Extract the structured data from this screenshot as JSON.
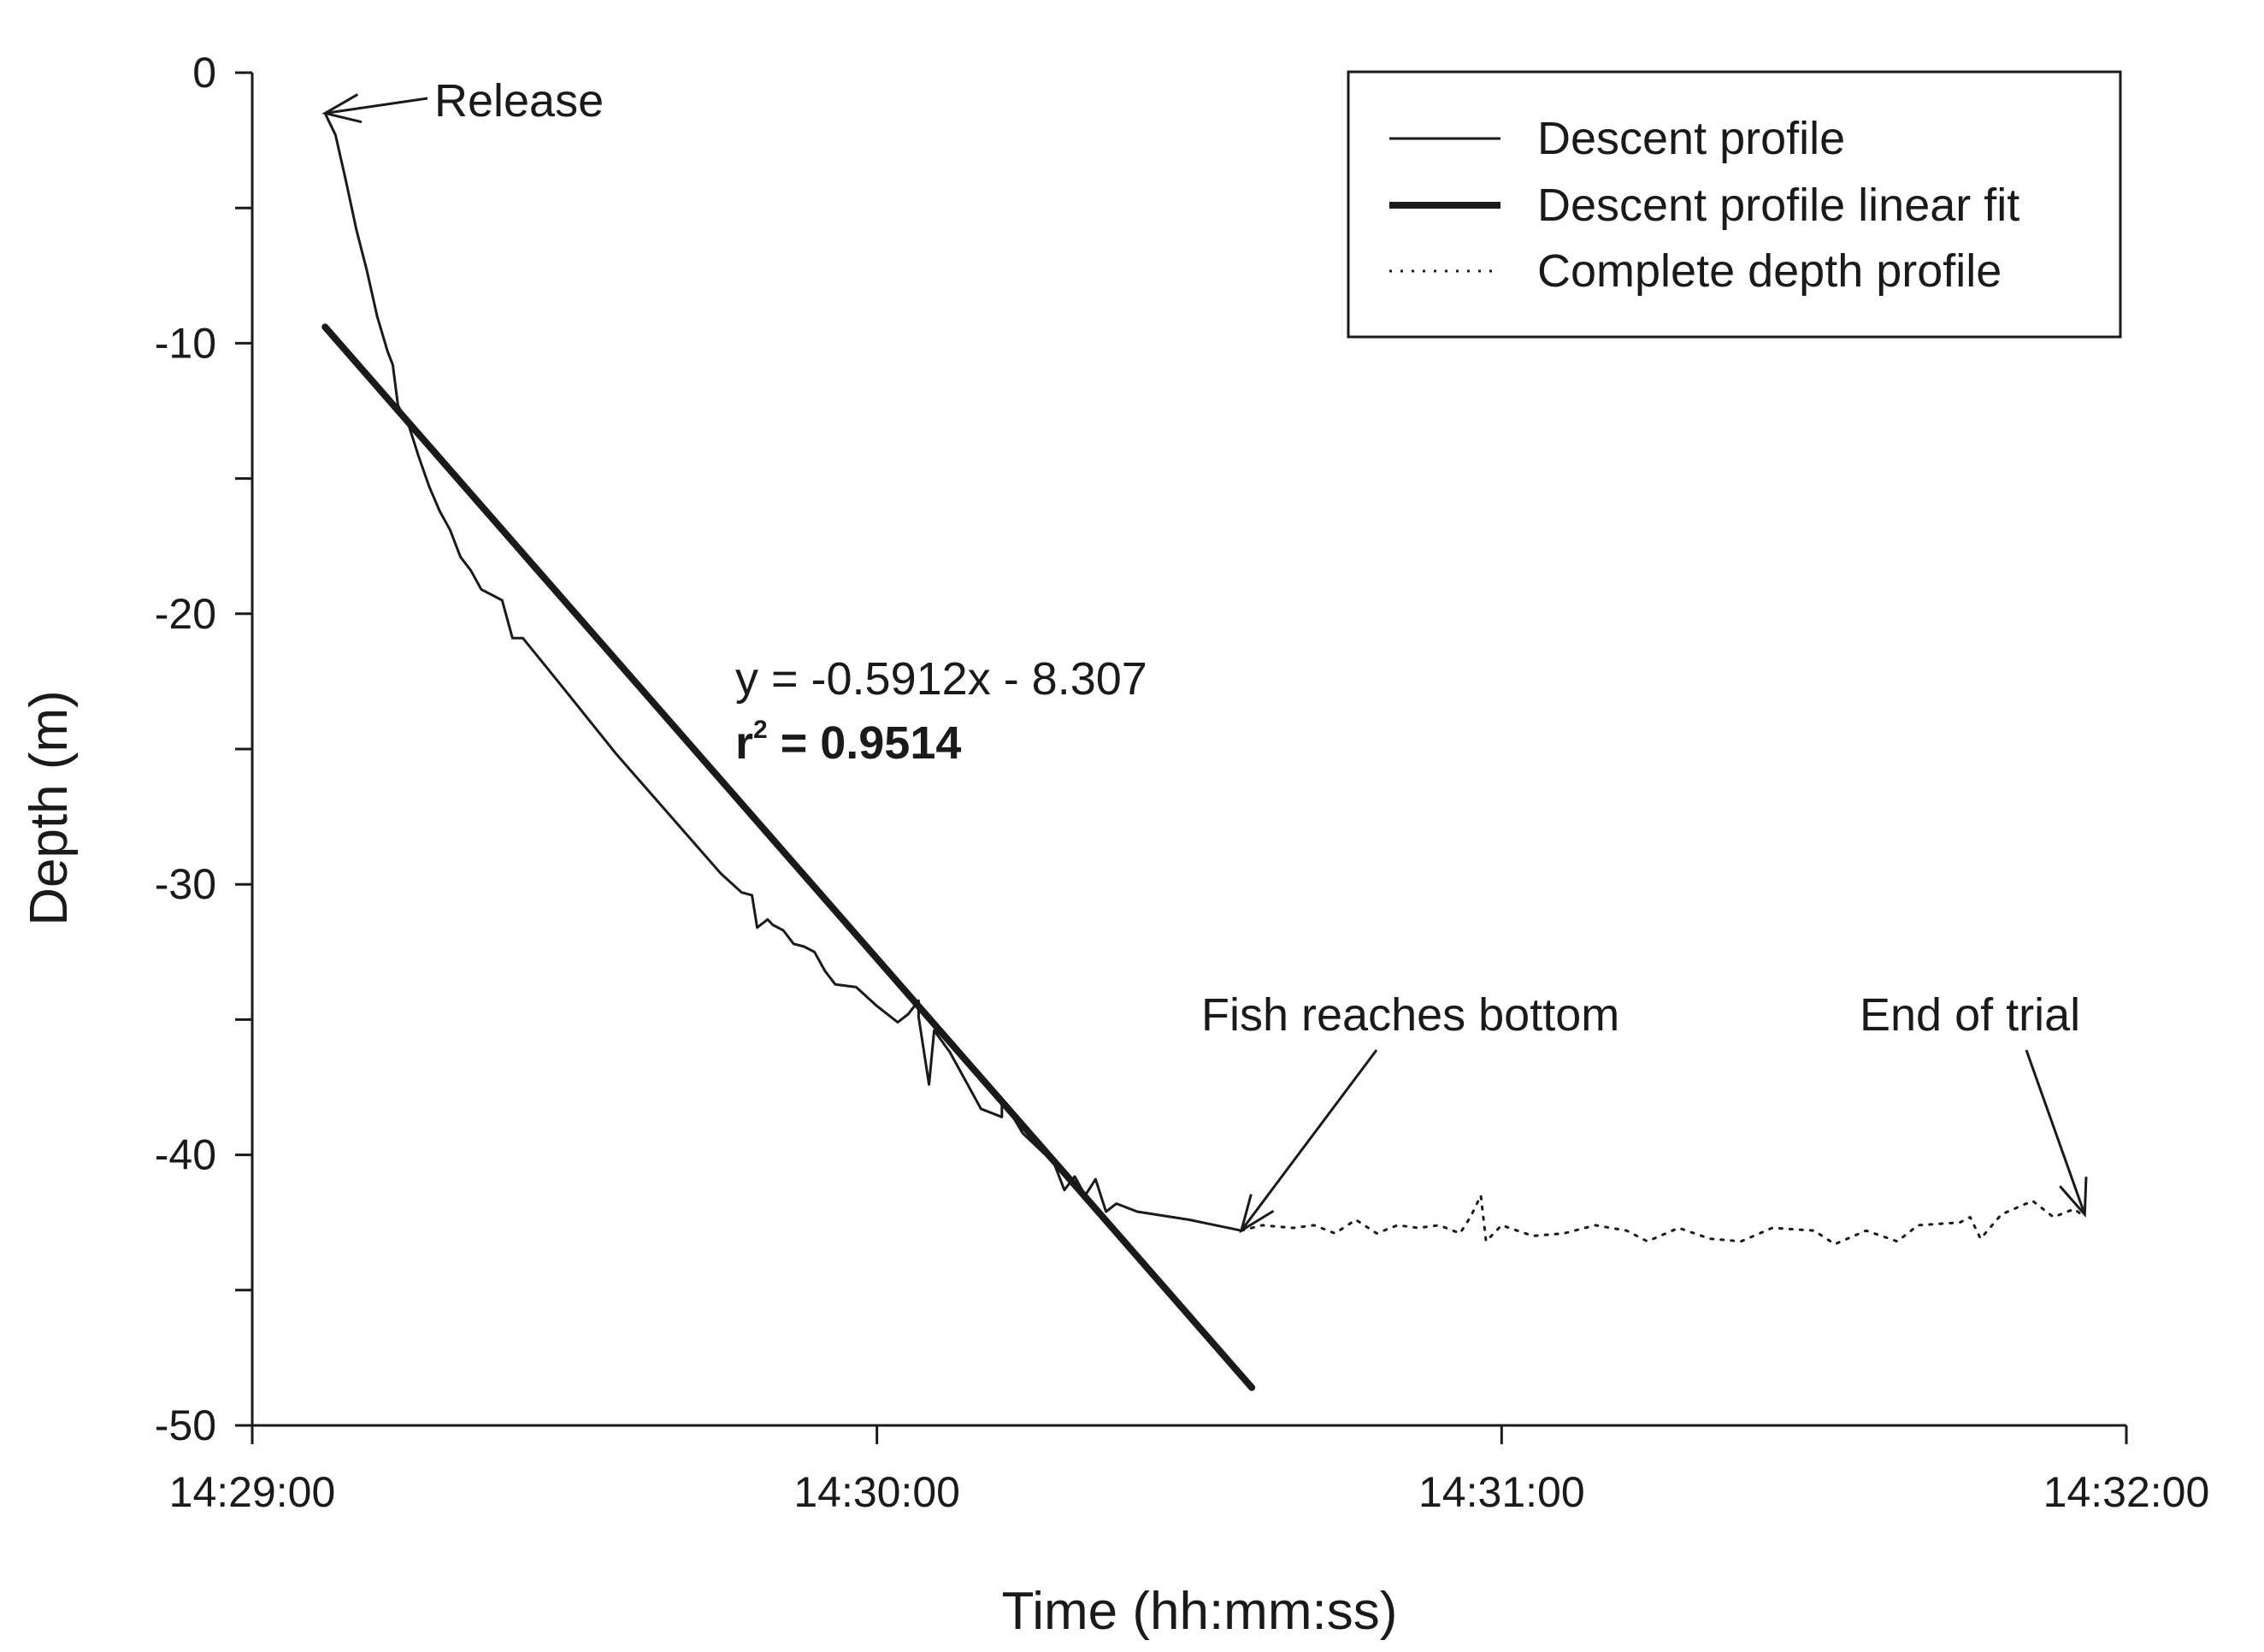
{
  "chart_data": {
    "type": "line",
    "xlabel": "Time (hh:mm:ss)",
    "ylabel": "Depth (m)",
    "x_unit": "hh:mm:ss",
    "xlim": [
      "14:29:00",
      "14:32:00"
    ],
    "ylim": [
      -50,
      0
    ],
    "x_ticks": [
      "14:29:00",
      "14:30:00",
      "14:31:00",
      "14:32:00"
    ],
    "y_ticks": [
      "0",
      "-10",
      "-20",
      "-30",
      "-40",
      "-50"
    ],
    "grid": false,
    "legend_position": "top-right",
    "legend": [
      "Descent profile",
      "Descent profile linear fit",
      "Complete depth profile"
    ],
    "series": [
      {
        "name": "Descent profile",
        "style": "thin-solid",
        "points": [
          [
            "14:29:07",
            -1.5
          ],
          [
            "14:29:08",
            -2.3
          ],
          [
            "14:29:09",
            -4.0
          ],
          [
            "14:29:10",
            -5.8
          ],
          [
            "14:29:11",
            -7.3
          ],
          [
            "14:29:12",
            -9.0
          ],
          [
            "14:29:13",
            -10.3
          ],
          [
            "14:29:13.5",
            -10.8
          ],
          [
            "14:29:14",
            -12.3
          ],
          [
            "14:29:15",
            -13.0
          ],
          [
            "14:29:16",
            -14.2
          ],
          [
            "14:29:17",
            -15.3
          ],
          [
            "14:29:18",
            -16.2
          ],
          [
            "14:29:19",
            -16.9
          ],
          [
            "14:29:20",
            -17.9
          ],
          [
            "14:29:21",
            -18.4
          ],
          [
            "14:29:22",
            -19.1
          ],
          [
            "14:29:24",
            -19.5
          ],
          [
            "14:29:25",
            -20.9
          ],
          [
            "14:29:26",
            -20.9
          ],
          [
            "14:29:30",
            -22.8
          ],
          [
            "14:29:35",
            -25.2
          ],
          [
            "14:29:40",
            -27.4
          ],
          [
            "14:29:45",
            -29.6
          ],
          [
            "14:29:47",
            -30.3
          ],
          [
            "14:29:48",
            -30.4
          ],
          [
            "14:29:48.5",
            -31.6
          ],
          [
            "14:29:49.5",
            -31.3
          ],
          [
            "14:29:50",
            -31.5
          ],
          [
            "14:29:51",
            -31.7
          ],
          [
            "14:29:52",
            -32.2
          ],
          [
            "14:29:53",
            -32.3
          ],
          [
            "14:29:54",
            -32.5
          ],
          [
            "14:29:55",
            -33.2
          ],
          [
            "14:29:56",
            -33.7
          ],
          [
            "14:29:58",
            -33.8
          ],
          [
            "14:30:00",
            -34.5
          ],
          [
            "14:30:02",
            -35.1
          ],
          [
            "14:30:03",
            -34.8
          ],
          [
            "14:30:04",
            -34.3
          ],
          [
            "14:30:04",
            -34.9
          ],
          [
            "14:30:05",
            -37.4
          ],
          [
            "14:30:05.5",
            -35.4
          ],
          [
            "14:30:07",
            -36.2
          ],
          [
            "14:30:10",
            -38.3
          ],
          [
            "14:30:12",
            -38.6
          ],
          [
            "14:30:12",
            -37.9
          ],
          [
            "14:30:14",
            -39.2
          ],
          [
            "14:30:17",
            -40.3
          ],
          [
            "14:30:18",
            -41.3
          ],
          [
            "14:30:19",
            -40.8
          ],
          [
            "14:30:20",
            -41.5
          ],
          [
            "14:30:21",
            -40.9
          ],
          [
            "14:30:22",
            -42.1
          ],
          [
            "14:30:23",
            -41.8
          ],
          [
            "14:30:25",
            -42.1
          ],
          [
            "14:30:30",
            -42.4
          ],
          [
            "14:30:35",
            -42.8
          ]
        ]
      },
      {
        "name": "Descent profile linear fit",
        "style": "thick-solid",
        "points": [
          [
            "14:29:07",
            -9.4
          ],
          [
            "14:30:36",
            -48.6
          ]
        ]
      },
      {
        "name": "Complete depth profile",
        "style": "dotted",
        "points": [
          [
            "14:30:35",
            -42.8
          ],
          [
            "14:30:37",
            -42.6
          ],
          [
            "14:30:40",
            -42.7
          ],
          [
            "14:30:42",
            -42.6
          ],
          [
            "14:30:44",
            -42.9
          ],
          [
            "14:30:46",
            -42.4
          ],
          [
            "14:30:48",
            -42.9
          ],
          [
            "14:30:50",
            -42.6
          ],
          [
            "14:30:52",
            -42.7
          ],
          [
            "14:30:54",
            -42.6
          ],
          [
            "14:30:56",
            -42.9
          ],
          [
            "14:30:57",
            -42.3
          ],
          [
            "14:30:58",
            -41.5
          ],
          [
            "14:30:58.5",
            -43.2
          ],
          [
            "14:31:00",
            -42.6
          ],
          [
            "14:31:03",
            -43.0
          ],
          [
            "14:31:06",
            -42.9
          ],
          [
            "14:31:09",
            -42.6
          ],
          [
            "14:31:12",
            -42.8
          ],
          [
            "14:31:14",
            -43.2
          ],
          [
            "14:31:17",
            -42.7
          ],
          [
            "14:31:20",
            -43.1
          ],
          [
            "14:31:23",
            -43.2
          ],
          [
            "14:31:26",
            -42.7
          ],
          [
            "14:31:30",
            -42.8
          ],
          [
            "14:31:32",
            -43.3
          ],
          [
            "14:31:35",
            -42.8
          ],
          [
            "14:31:38",
            -43.2
          ],
          [
            "14:31:40",
            -42.6
          ],
          [
            "14:31:44",
            -42.5
          ],
          [
            "14:31:45",
            -42.3
          ],
          [
            "14:31:46",
            -43.1
          ],
          [
            "14:31:48",
            -42.2
          ],
          [
            "14:31:51",
            -41.7
          ],
          [
            "14:31:53",
            -42.3
          ],
          [
            "14:31:55",
            -42.0
          ],
          [
            "14:31:56",
            -42.3
          ]
        ]
      }
    ],
    "annotations": [
      {
        "text": "Release",
        "target": [
          "14:29:07",
          -1.5
        ]
      },
      {
        "text": "Fish reaches bottom",
        "target": [
          "14:30:35",
          -42.8
        ]
      },
      {
        "text": "End of trial",
        "target": [
          "14:31:56",
          -42.2
        ]
      }
    ],
    "equation": {
      "line1": "y = -0.5912x - 8.307",
      "line2_prefix": "r",
      "line2_exp": "2",
      "line2_rest": " = 0.9514"
    }
  }
}
